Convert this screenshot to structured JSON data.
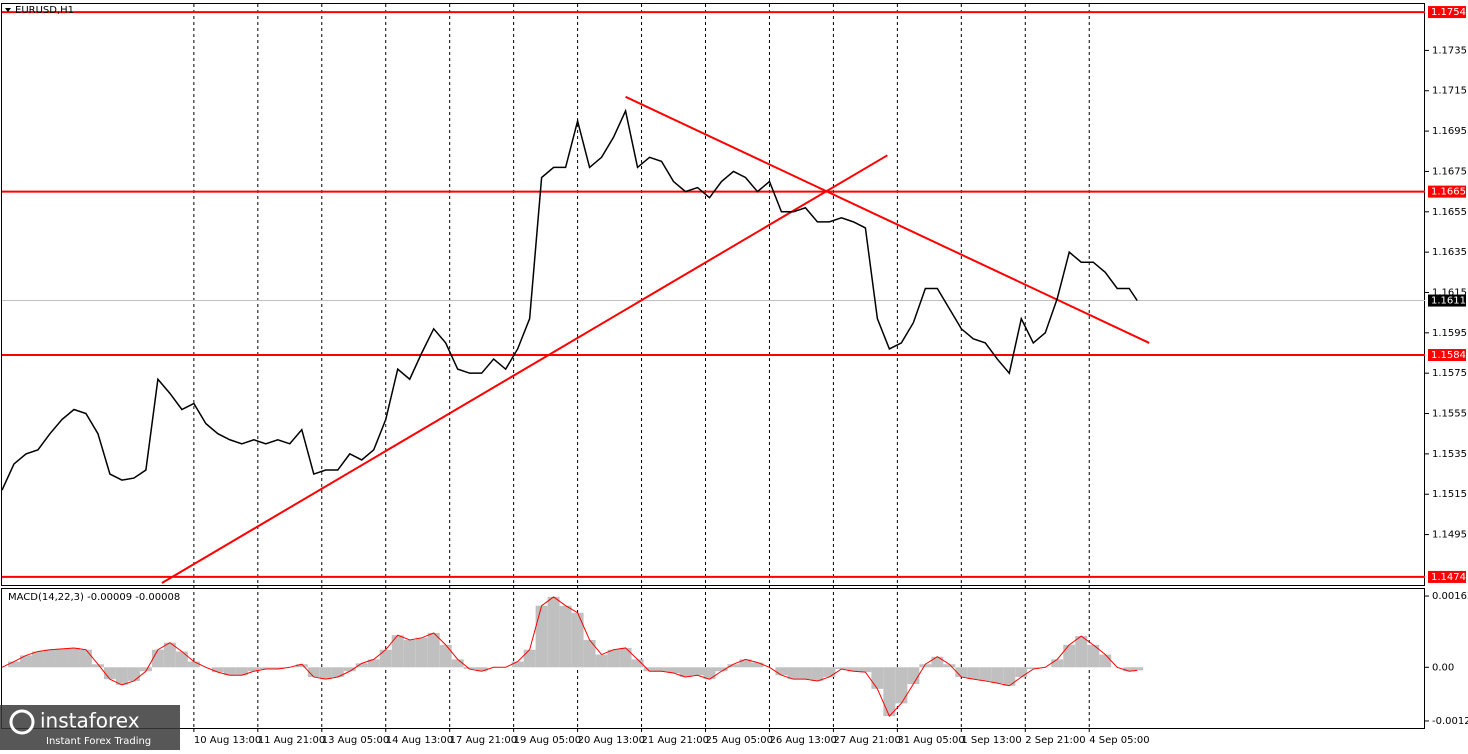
{
  "chart_data": {
    "type": "line",
    "title": "EURUSD,H1",
    "xlim": [
      0,
      712
    ],
    "ylim": [
      1.147,
      1.1758
    ],
    "xticks": [
      {
        "value": 96,
        "label": "10 Aug 13:00"
      },
      {
        "value": 128,
        "label": "11 Aug 21:00"
      },
      {
        "value": 160,
        "label": "13 Aug 05:00"
      },
      {
        "value": 192,
        "label": "14 Aug 13:00"
      },
      {
        "value": 224,
        "label": "17 Aug 21:00"
      },
      {
        "value": 256,
        "label": "19 Aug 05:00"
      },
      {
        "value": 288,
        "label": "20 Aug 13:00"
      },
      {
        "value": 320,
        "label": "21 Aug 21:00"
      },
      {
        "value": 352,
        "label": "25 Aug 05:00"
      },
      {
        "value": 384,
        "label": "26 Aug 13:00"
      },
      {
        "value": 416,
        "label": "27 Aug 21:00"
      },
      {
        "value": 448,
        "label": "31 Aug 05:00"
      },
      {
        "value": 480,
        "label": "1 Sep 13:00"
      },
      {
        "value": 512,
        "label": "2 Sep 21:00"
      },
      {
        "value": 544,
        "label": "4 Sep 05:00"
      }
    ],
    "yticks": [
      1.1735,
      1.1715,
      1.1695,
      1.1675,
      1.1655,
      1.1635,
      1.1615,
      1.1595,
      1.1575,
      1.1555,
      1.1535,
      1.1515,
      1.1495
    ],
    "grid": true,
    "x": [
      0,
      6,
      12,
      18,
      24,
      30,
      36,
      42,
      48,
      54,
      60,
      66,
      72,
      78,
      84,
      90,
      96,
      102,
      108,
      114,
      120,
      126,
      132,
      138,
      144,
      150,
      156,
      162,
      168,
      174,
      180,
      186,
      192,
      198,
      204,
      210,
      216,
      222,
      228,
      234,
      240,
      246,
      252,
      258,
      264,
      270,
      276,
      282,
      288,
      294,
      300,
      306,
      312,
      318,
      324,
      330,
      336,
      342,
      348,
      354,
      360,
      366,
      372,
      378,
      384,
      390,
      396,
      402,
      408,
      414,
      420,
      426,
      432,
      438,
      444,
      450,
      456,
      462,
      468,
      474,
      480,
      486,
      492,
      498,
      504,
      510,
      516,
      522,
      528,
      534,
      540,
      546,
      552,
      558,
      564,
      568
    ],
    "series": [
      {
        "name": "EURUSD",
        "color": "#000000",
        "values": [
          1.1517,
          1.153,
          1.1535,
          1.1537,
          1.1545,
          1.1552,
          1.1557,
          1.1555,
          1.1545,
          1.1525,
          1.1522,
          1.1523,
          1.1527,
          1.1572,
          1.1565,
          1.1557,
          1.156,
          1.155,
          1.1545,
          1.1542,
          1.154,
          1.1542,
          1.154,
          1.1542,
          1.154,
          1.1547,
          1.1525,
          1.1527,
          1.1527,
          1.1535,
          1.1532,
          1.1537,
          1.1552,
          1.1577,
          1.1572,
          1.1585,
          1.1597,
          1.159,
          1.1577,
          1.1575,
          1.1575,
          1.1582,
          1.1577,
          1.1587,
          1.1602,
          1.1672,
          1.1677,
          1.1677,
          1.17,
          1.1677,
          1.1682,
          1.1692,
          1.1705,
          1.1677,
          1.1682,
          1.168,
          1.167,
          1.1665,
          1.1667,
          1.1662,
          1.167,
          1.1675,
          1.1672,
          1.1665,
          1.167,
          1.1655,
          1.1655,
          1.1657,
          1.165,
          1.165,
          1.1652,
          1.165,
          1.1647,
          1.1602,
          1.1587,
          1.159,
          1.16,
          1.1617,
          1.1617,
          1.1607,
          1.1597,
          1.1592,
          1.159,
          1.1582,
          1.1575,
          1.1602,
          1.159,
          1.1595,
          1.1612,
          1.1635,
          1.163,
          1.163,
          1.1625,
          1.1617,
          1.1617,
          1.1611
        ]
      }
    ],
    "levels": [
      {
        "value": 1.1754,
        "color": "#ff0000"
      },
      {
        "value": 1.1665,
        "color": "#ff0000"
      },
      {
        "value": 1.1584,
        "color": "#ff0000"
      },
      {
        "value": 1.1474,
        "color": "#ff0000"
      }
    ],
    "current_price": 1.1611,
    "trendlines": [
      {
        "x": [
          80,
          443
        ],
        "y": [
          1.1471,
          1.1683
        ],
        "color": "#ff0000"
      },
      {
        "x": [
          312,
          574
        ],
        "y": [
          1.1712,
          1.159
        ],
        "color": "#ff0000"
      }
    ],
    "macd": {
      "title": "MACD(14,22,3) -0.00009 -0.00008",
      "ylim": [
        -0.00138,
        0.00178
      ],
      "yticks": [
        0.00162,
        {
          "value": 0,
          "label": "0.00"
        },
        -0.00122
      ],
      "hist_color": "#c0c0c0",
      "signal_color": "#ff0000",
      "values": [
        0,
        0.00013,
        0.00027,
        0.00036,
        0.0004,
        0.00042,
        0.00044,
        0.0004,
        7e-05,
        -0.00027,
        -0.0004,
        -0.00031,
        -9e-05,
        0.0004,
        0.00056,
        0.00036,
        0.00013,
        0,
        -0.00011,
        -0.00018,
        -0.00018,
        -9e-05,
        -4e-05,
        -4e-05,
        0,
        7e-05,
        -0.00022,
        -0.00027,
        -0.00022,
        -9e-05,
        9e-05,
        0.00018,
        0.0004,
        0.00073,
        0.00062,
        0.00067,
        0.00078,
        0.00051,
        0.00018,
        -4e-05,
        -9e-05,
        0,
        0,
        0.00013,
        0.0004,
        0.0014,
        0.0016,
        0.0014,
        0.00124,
        0.00062,
        0.00029,
        0.0004,
        0.00044,
        0.00018,
        -9e-05,
        -9e-05,
        -0.00013,
        -0.00022,
        -0.00018,
        -0.00027,
        -9e-05,
        7e-05,
        0.00018,
        0.00011,
        0,
        -0.00018,
        -0.00027,
        -0.00027,
        -0.00031,
        -0.00022,
        -4e-05,
        -9e-05,
        -0.00011,
        -0.00049,
        -0.00111,
        -0.00082,
        -0.00038,
        7e-05,
        0.00024,
        7e-05,
        -0.00022,
        -0.00027,
        -0.00031,
        -0.00036,
        -0.00042,
        -0.00022,
        -4e-05,
        0,
        0.00018,
        0.00051,
        0.00071,
        0.00051,
        0.00029,
        0,
        -9e-05,
        -7e-05
      ]
    },
    "watermark": {
      "brand": "instaforex",
      "tagline": "Instant Forex Trading"
    }
  }
}
